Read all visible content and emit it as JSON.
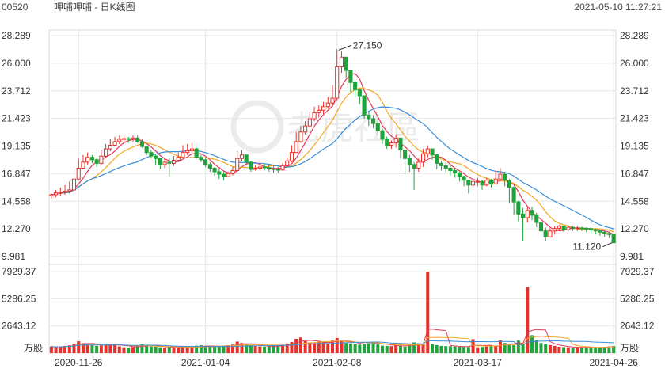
{
  "header": {
    "code": "00520",
    "name": "呷哺呷哺 - 日K线图",
    "datetime": "2021-05-10 11:27:21"
  },
  "watermark": "老虎社區",
  "colors": {
    "up": "#e8302a",
    "down": "#1fa33a",
    "ma5": "#e23a5b",
    "ma10": "#f5a623",
    "ma20": "#3a8fd8"
  },
  "chart_data": {
    "type": "candlestick",
    "price_axis": {
      "ticks": [
        "28.289",
        "26.000",
        "23.712",
        "21.423",
        "19.135",
        "16.847",
        "14.558",
        "12.270",
        "9.981"
      ],
      "range": [
        9.981,
        28.289
      ]
    },
    "volume_axis": {
      "ticks": [
        "7929.37",
        "5286.25",
        "2643.12"
      ],
      "unit": "万股",
      "range": [
        0,
        7929.37
      ]
    },
    "x_ticks": [
      "2020-11-26",
      "2021-01-04",
      "2021-02-08",
      "2021-03-17",
      "2021-04-26"
    ],
    "annotations": [
      {
        "text": "27.150",
        "series": "high"
      },
      {
        "text": "11.120",
        "series": "low"
      }
    ],
    "series": [
      {
        "name": "close",
        "values": [
          15.1,
          15.25,
          15.3,
          15.4,
          15.5,
          16.4,
          17.3,
          17.8,
          18.2,
          18.0,
          17.7,
          18.3,
          18.9,
          19.2,
          19.5,
          19.7,
          19.75,
          19.7,
          19.8,
          19.5,
          19.1,
          18.6,
          18.3,
          18.1,
          17.6,
          17.8,
          17.7,
          17.95,
          18.2,
          18.6,
          18.75,
          18.9,
          18.2,
          18.0,
          17.6,
          17.3,
          17.0,
          16.8,
          16.6,
          16.85,
          17.1,
          18.1,
          18.4,
          17.8,
          17.2,
          17.3,
          17.4,
          17.35,
          17.25,
          17.2,
          17.15,
          17.5,
          17.9,
          18.6,
          19.5,
          20.3,
          20.8,
          21.4,
          21.9,
          22.1,
          22.4,
          22.7,
          23.1,
          25.7,
          26.5,
          25.4,
          24.4,
          23.8,
          23.3,
          21.7,
          21.4,
          21.0,
          20.4,
          19.7,
          19.2,
          19.4,
          19.8,
          18.8,
          18.1,
          17.6,
          17.3,
          17.8,
          18.5,
          18.9,
          18.4,
          17.7,
          17.5,
          17.3,
          17.1,
          16.9,
          16.6,
          16.3,
          15.9,
          16.2,
          16.2,
          15.9,
          16.3,
          16.0,
          16.4,
          16.8,
          16.3,
          15.7,
          14.5,
          13.5,
          13.2,
          13.8,
          13.4,
          12.8,
          12.1,
          11.6,
          12.1,
          12.3,
          12.5,
          12.2,
          12.4,
          12.3,
          12.35,
          12.3,
          12.28,
          12.2,
          12.1,
          12.0,
          11.9,
          11.8,
          11.12
        ]
      },
      {
        "name": "high",
        "values": [
          15.2,
          15.5,
          15.7,
          15.9,
          16.2,
          17.2,
          18.1,
          18.4,
          18.6,
          18.4,
          18.1,
          18.8,
          19.3,
          19.7,
          19.9,
          20.0,
          20.0,
          19.9,
          20.0,
          20.0,
          19.7,
          19.1,
          18.8,
          18.5,
          18.1,
          18.1,
          18.1,
          18.3,
          18.6,
          19.2,
          19.3,
          19.4,
          19.0,
          18.4,
          18.1,
          17.8,
          17.4,
          17.2,
          17.0,
          17.0,
          17.4,
          18.7,
          18.8,
          18.3,
          17.9,
          17.6,
          17.7,
          17.7,
          17.6,
          17.5,
          17.4,
          17.7,
          18.2,
          19.2,
          20.3,
          20.8,
          21.2,
          22.0,
          22.4,
          22.5,
          22.8,
          23.2,
          24.2,
          27.15,
          27.0,
          26.2,
          25.1,
          24.3,
          23.7,
          22.9,
          22.0,
          21.7,
          21.3,
          20.6,
          19.9,
          19.6,
          20.1,
          19.8,
          18.8,
          18.4,
          17.8,
          18.1,
          18.9,
          19.2,
          18.8,
          18.5,
          17.9,
          17.8,
          17.5,
          17.2,
          17.0,
          16.7,
          16.3,
          16.5,
          16.5,
          16.3,
          16.5,
          16.4,
          17.1,
          17.3,
          17.0,
          16.4,
          15.8,
          14.6,
          14.0,
          14.1,
          14.1,
          13.6,
          13.0,
          12.4,
          12.3,
          12.5,
          12.6,
          12.5,
          12.55,
          12.5,
          12.5,
          12.45,
          12.4,
          12.4,
          12.3,
          12.2,
          12.1,
          12.0,
          11.85
        ]
      },
      {
        "name": "low",
        "values": [
          14.8,
          14.9,
          15.0,
          15.1,
          15.2,
          15.5,
          16.3,
          17.2,
          17.6,
          17.7,
          17.4,
          17.6,
          18.2,
          18.7,
          19.1,
          19.3,
          19.4,
          19.4,
          19.5,
          19.4,
          19.0,
          18.4,
          18.1,
          17.6,
          17.2,
          17.3,
          16.6,
          17.5,
          17.9,
          18.1,
          18.4,
          18.6,
          18.1,
          17.8,
          17.4,
          17.0,
          16.7,
          16.4,
          16.3,
          16.6,
          16.7,
          17.0,
          17.9,
          17.6,
          17.0,
          17.1,
          17.1,
          17.1,
          17.0,
          16.9,
          16.9,
          17.1,
          17.4,
          17.8,
          18.6,
          19.4,
          20.1,
          20.6,
          21.2,
          21.5,
          21.8,
          22.2,
          22.5,
          22.9,
          25.2,
          24.8,
          23.6,
          23.2,
          22.6,
          21.4,
          20.8,
          20.6,
          20.0,
          19.3,
          18.9,
          18.9,
          19.0,
          18.1,
          16.8,
          17.0,
          15.5,
          17.0,
          17.4,
          18.2,
          18.0,
          17.2,
          17.1,
          16.9,
          16.7,
          16.5,
          16.2,
          15.8,
          15.2,
          15.7,
          15.8,
          15.5,
          15.8,
          15.7,
          16.0,
          16.2,
          15.8,
          14.4,
          13.4,
          12.9,
          11.3,
          12.8,
          13.0,
          12.4,
          11.8,
          11.3,
          11.6,
          11.8,
          12.1,
          12.0,
          12.1,
          12.1,
          12.1,
          12.1,
          12.0,
          11.9,
          11.8,
          11.7,
          11.6,
          11.5,
          11.12
        ]
      },
      {
        "name": "volume",
        "values": [
          640,
          580,
          620,
          700,
          760,
          900,
          1150,
          960,
          880,
          760,
          700,
          740,
          800,
          900,
          870,
          650,
          560,
          540,
          590,
          700,
          860,
          760,
          640,
          620,
          560,
          520,
          600,
          520,
          500,
          540,
          580,
          660,
          720,
          760,
          700,
          640,
          600,
          680,
          720,
          760,
          820,
          1120,
          980,
          860,
          780,
          700,
          640,
          620,
          660,
          700,
          720,
          820,
          940,
          1080,
          1380,
          1520,
          1160,
          1040,
          980,
          1120,
          1040,
          960,
          1220,
          1460,
          1180,
          980,
          900,
          860,
          820,
          900,
          960,
          1080,
          840,
          720,
          700,
          680,
          760,
          700,
          620,
          840,
          1040,
          940,
          860,
          7920,
          860,
          780,
          700,
          680,
          660,
          640,
          620,
          600,
          580,
          1360,
          560,
          600,
          640,
          700,
          660,
          1240,
          980,
          860,
          760,
          1220,
          880,
          6400,
          1740,
          1260,
          980,
          860,
          780,
          700,
          620,
          580,
          560,
          520,
          560,
          540,
          520,
          540,
          580,
          560,
          600,
          640,
          680
        ]
      }
    ]
  }
}
